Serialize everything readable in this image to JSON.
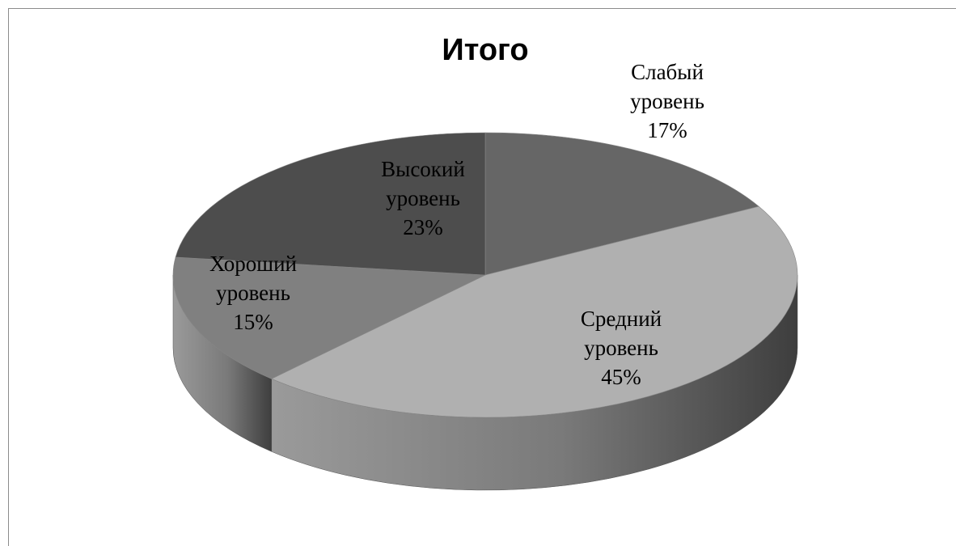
{
  "chart_data": {
    "type": "pie",
    "title": "Итого",
    "categories": [
      "Слабый уровень",
      "Средний уровень",
      "Хороший уровень",
      "Высокий уровень"
    ],
    "values": [
      17,
      45,
      15,
      23
    ],
    "value_labels": [
      "17%",
      "45%",
      "15%",
      "23%"
    ],
    "colors": [
      "#666666",
      "#b0b0b0",
      "#808080",
      "#4d4d4d"
    ]
  }
}
